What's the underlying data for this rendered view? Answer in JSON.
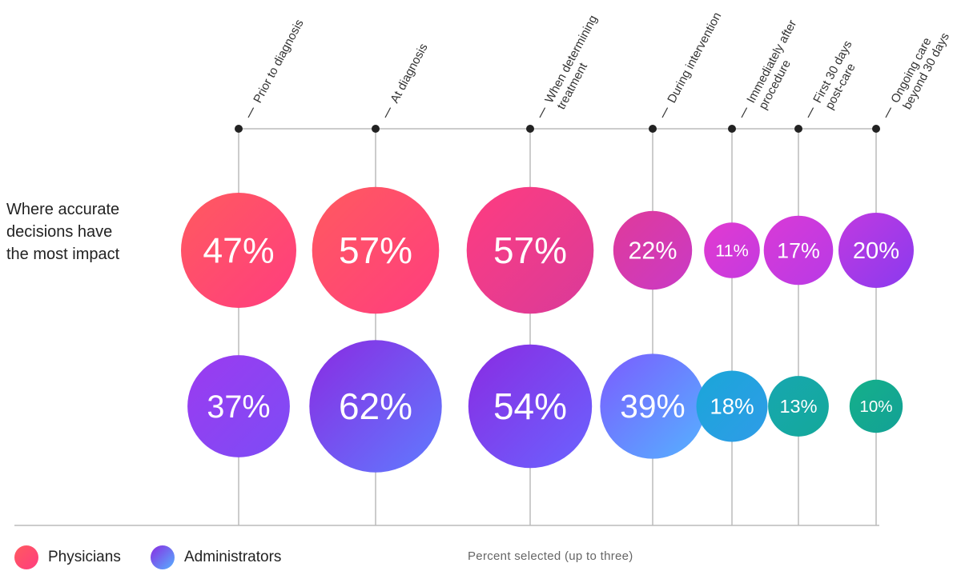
{
  "chart_data": {
    "type": "bubble",
    "title": "",
    "row_label_lines": [
      "Where accurate",
      "decisions have",
      "the most impact"
    ],
    "categories": [
      [
        "Prior to diagnosis"
      ],
      [
        "At diagnosis"
      ],
      [
        "When determining",
        "treatment"
      ],
      [
        "During intervention"
      ],
      [
        "Immediately after",
        "procedure"
      ],
      [
        "First  30 days",
        "post-care"
      ],
      [
        "Ongoing care",
        "beyond 30 days"
      ]
    ],
    "series": [
      {
        "name": "Physicians",
        "values": [
          47,
          57,
          57,
          22,
          11,
          17,
          20
        ],
        "labels": [
          "47%",
          "57%",
          "57%",
          "22%",
          "11%",
          "17%",
          "20%"
        ]
      },
      {
        "name": "Administrators",
        "values": [
          37,
          62,
          54,
          39,
          18,
          13,
          10
        ],
        "labels": [
          "37%",
          "62%",
          "54%",
          "39%",
          "18%",
          "13%",
          "10%"
        ]
      }
    ],
    "unit": "%",
    "xlabel": "Percent selected (up to three)"
  },
  "colors": {
    "physicians": [
      "#ff5a5f",
      "#ff3d7f",
      "#d93ad6"
    ],
    "administrators": [
      "#8a2be2",
      "#7b5cff",
      "#55b2ff"
    ],
    "teal": [
      "#1aa6c9",
      "#14a89a"
    ],
    "axis": "#bbbbbb"
  }
}
